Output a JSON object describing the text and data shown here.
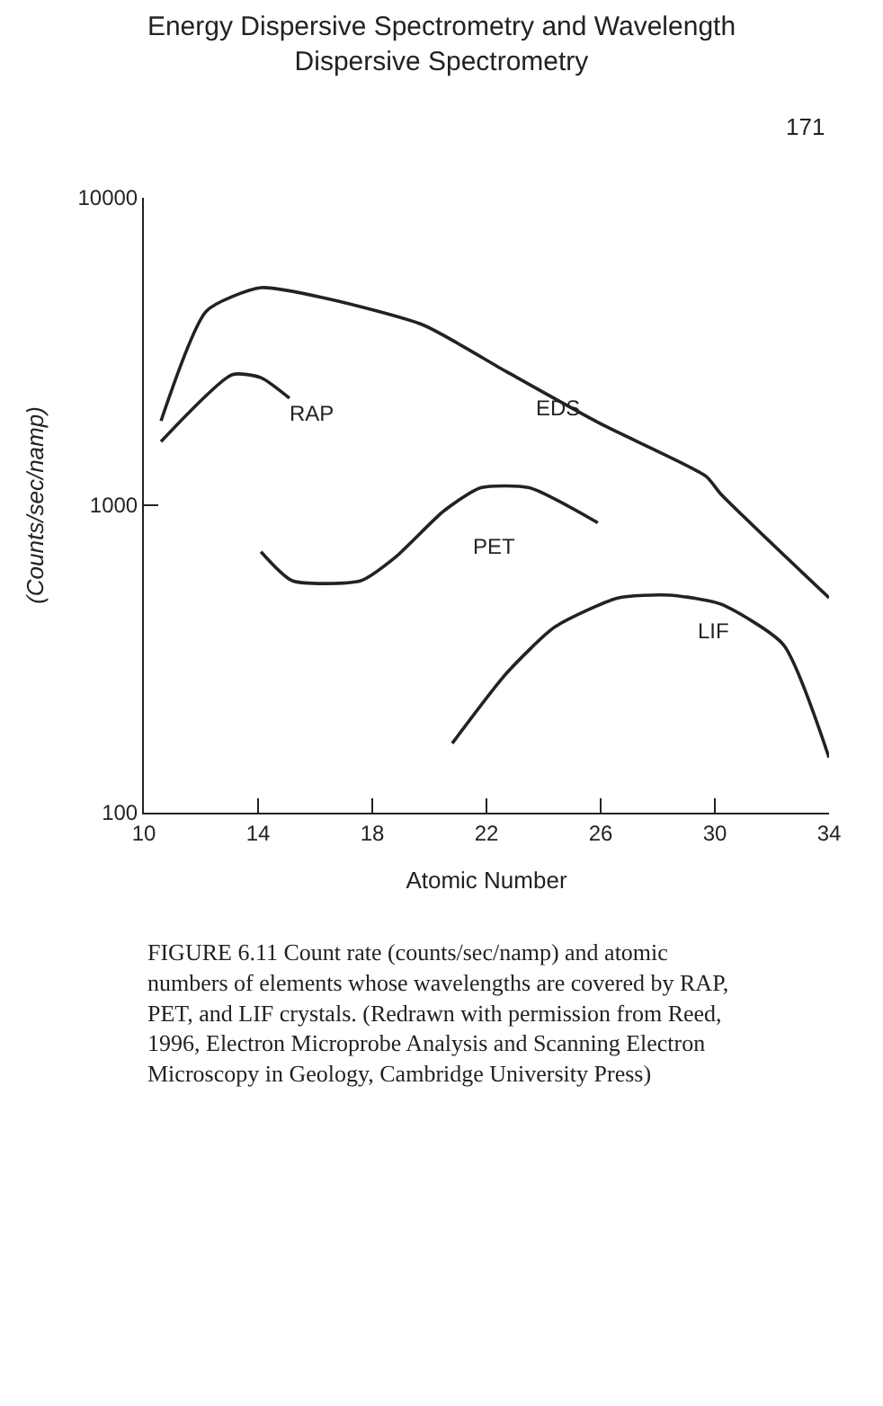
{
  "chart_data": {
    "type": "line",
    "title": "Energy Dispersive Spectrometry and Wavelength Dispersive Spectrometry",
    "xlabel": "Atomic Number",
    "ylabel": "(Counts/sec/namp)",
    "annotations": [
      "171",
      "FIGURE 6.11 Count rate (counts/sec/namp) and atomic numbers of elements whose wavelengths are covered by RAP, PET, and LIF crystals. (Redrawn with permission from Reed, 1996, Electron Microprobe Analysis and Scanning Electron Microscopy in Geology, Cambridge University Press)"
    ],
    "log": "y",
    "xlim": [
      10,
      34
    ],
    "xticks": [
      10,
      14,
      18,
      22,
      26,
      30,
      34
    ],
    "ylim": [
      100,
      10000
    ],
    "yticks": [
      100,
      1000,
      10000
    ],
    "legend": false,
    "marker": "none",
    "line_style": "solid",
    "series": [
      {
        "name": "EDS",
        "color": "#222222",
        "x": [
          10.6,
          12.2,
          14.1,
          16.5,
          19.8,
          22.7,
          26.0,
          29.7,
          30.2,
          34.0
        ],
        "values": [
          1880,
          4290,
          5100,
          4680,
          3850,
          2720,
          1840,
          1240,
          1090,
          500
        ]
      },
      {
        "name": "RAP",
        "color": "#222222",
        "x": [
          10.6,
          13.1,
          14.1,
          15.1
        ],
        "values": [
          1610,
          2660,
          2600,
          2230
        ]
      },
      {
        "name": "PET",
        "color": "#222222",
        "x": [
          14.1,
          15.2,
          17.6,
          18.8,
          20.5,
          21.8,
          23.5,
          25.9
        ],
        "values": [
          706,
          568,
          568,
          676,
          957,
          1140,
          1140,
          877
        ]
      },
      {
        "name": "LIF",
        "color": "#222222",
        "x": [
          20.8,
          22.7,
          24.4,
          26.6,
          28.4,
          30.2,
          32.4,
          34.0
        ],
        "values": [
          168,
          284,
          402,
          499,
          510,
          477,
          352,
          151
        ]
      }
    ]
  }
}
